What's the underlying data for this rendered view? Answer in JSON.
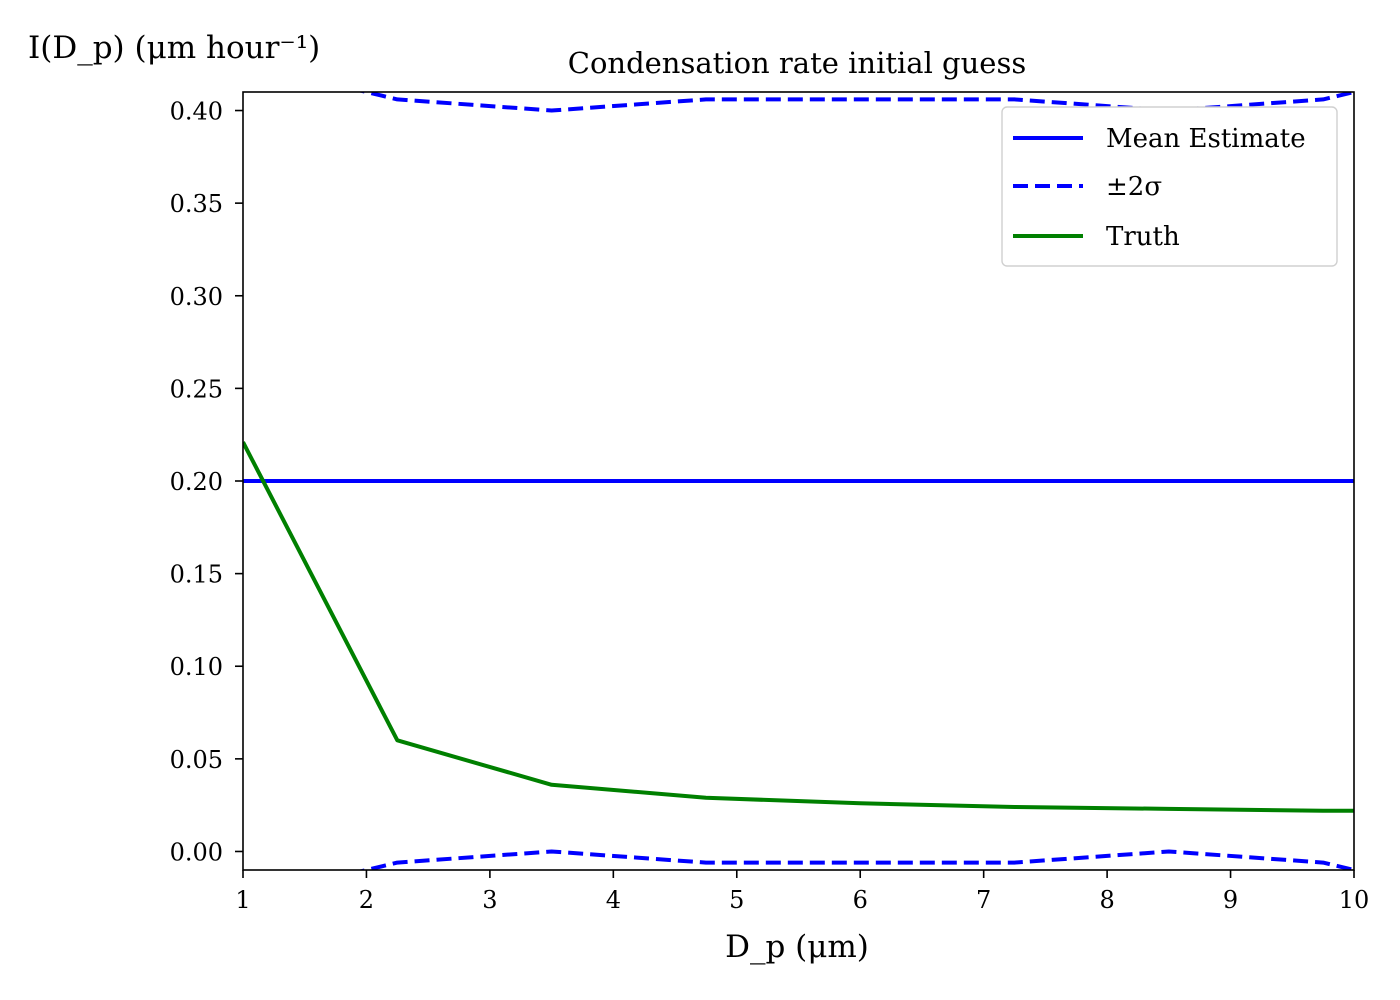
{
  "chart_data": {
    "type": "line",
    "title": "Condensation rate initial guess",
    "xlabel": "D_p (μm)",
    "ylabel": "I(D_p) (μm hour⁻¹)",
    "xlim": [
      1,
      10
    ],
    "ylim": [
      -0.01,
      0.41
    ],
    "grid": false,
    "legend_position": "top-right",
    "x_ticks": [
      1,
      2,
      3,
      4,
      5,
      6,
      7,
      8,
      9,
      10
    ],
    "x_tick_labels": [
      "1",
      "2",
      "3",
      "4",
      "5",
      "6",
      "7",
      "8",
      "9",
      "10"
    ],
    "y_ticks": [
      0.0,
      0.05,
      0.1,
      0.15,
      0.2,
      0.25,
      0.3,
      0.35,
      0.4
    ],
    "y_tick_labels": [
      "0.00",
      "0.05",
      "0.10",
      "0.15",
      "0.20",
      "0.25",
      "0.30",
      "0.35",
      "0.40"
    ],
    "x": [
      1.0,
      2.25,
      3.5,
      4.75,
      6.0,
      7.25,
      8.5,
      9.75,
      10.0
    ],
    "series": [
      {
        "name": "Mean Estimate",
        "style": "solid",
        "color": "#0000ff",
        "values": [
          0.2,
          0.2,
          0.2,
          0.2,
          0.2,
          0.2,
          0.2,
          0.2,
          0.2
        ]
      },
      {
        "name": "±2σ",
        "style": "dashed",
        "color": "#0000ff",
        "values": [
          0.426,
          0.406,
          0.4,
          0.406,
          0.406,
          0.406,
          0.4,
          0.406,
          0.41
        ]
      },
      {
        "name": "",
        "style": "dashed",
        "color": "#0000ff",
        "values": [
          -0.026,
          -0.006,
          0.0,
          -0.006,
          -0.006,
          -0.006,
          0.0,
          -0.006,
          -0.01
        ]
      },
      {
        "name": "Truth",
        "style": "solid",
        "color": "#008000",
        "values": [
          0.221,
          0.06,
          0.036,
          0.029,
          0.026,
          0.024,
          0.023,
          0.022,
          0.022
        ]
      }
    ]
  }
}
